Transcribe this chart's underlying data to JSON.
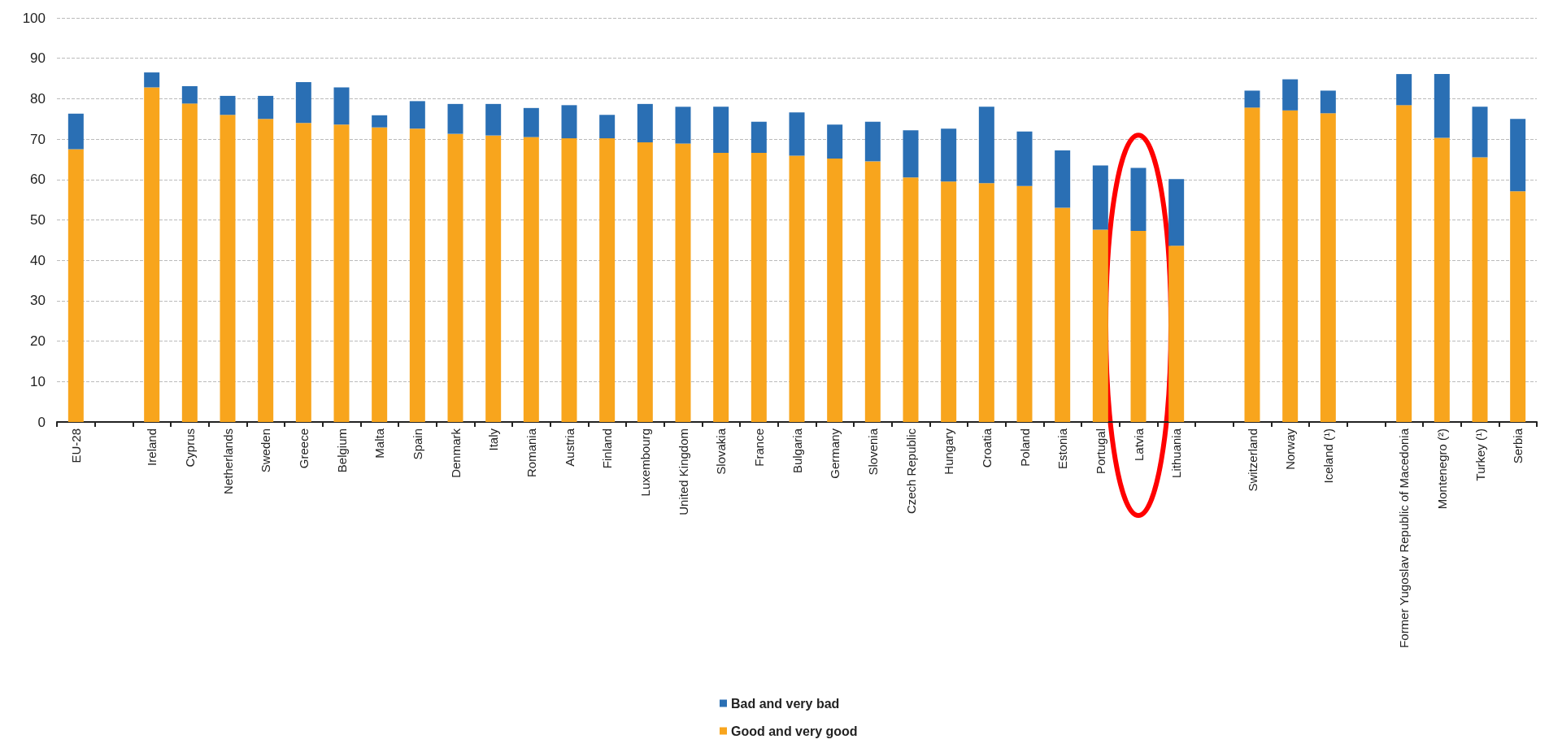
{
  "chart_data": {
    "type": "bar",
    "stacked": true,
    "categories": [
      "EU-28",
      null,
      "Ireland",
      "Cyprus",
      "Netherlands",
      "Sweden",
      "Greece",
      "Belgium",
      "Malta",
      "Spain",
      "Denmark",
      "Italy",
      "Romania",
      "Austria",
      "Finland",
      "Luxembourg",
      "United Kingdom",
      "Slovakia",
      "France",
      "Bulgaria",
      "Germany",
      "Slovenia",
      "Czech Republic",
      "Hungary",
      "Croatia",
      "Poland",
      "Estonia",
      "Portugal",
      "Latvia",
      "Lithuania",
      null,
      "Switzerland",
      "Norway",
      "Iceland (¹)",
      null,
      "Former Yugoslav Republic of Macedonia",
      "Montenegro (²)",
      "Turkey (¹)",
      "Serbia"
    ],
    "series": [
      {
        "name": "Good and very good",
        "color": "#f8a51d",
        "values": [
          67.5,
          null,
          82.8,
          78.8,
          76.0,
          75.0,
          74.0,
          73.6,
          72.9,
          72.6,
          71.3,
          70.9,
          70.5,
          70.2,
          70.2,
          69.2,
          68.9,
          66.6,
          66.6,
          65.9,
          65.2,
          64.5,
          60.5,
          59.5,
          59.1,
          58.4,
          53.0,
          47.6,
          47.3,
          43.6,
          null,
          77.8,
          77.1,
          76.4,
          null,
          78.4,
          70.3,
          65.5,
          57.1
        ]
      },
      {
        "name": "Bad and very bad",
        "color": "#2a6fb4",
        "values": [
          8.8,
          null,
          3.7,
          4.3,
          4.7,
          5.7,
          10.1,
          9.2,
          3.0,
          6.8,
          7.4,
          7.8,
          7.2,
          8.2,
          5.8,
          9.5,
          9.1,
          11.4,
          7.7,
          10.7,
          8.4,
          9.8,
          11.7,
          13.1,
          18.9,
          13.5,
          14.2,
          15.9,
          15.6,
          16.5,
          null,
          4.2,
          7.7,
          5.6,
          null,
          7.7,
          15.8,
          12.5,
          17.9
        ]
      }
    ],
    "ylim": [
      0,
      100
    ],
    "yticks": [
      0,
      10,
      20,
      30,
      40,
      50,
      60,
      70,
      80,
      90,
      100
    ],
    "grid": "y",
    "legend": "bottom"
  }
}
